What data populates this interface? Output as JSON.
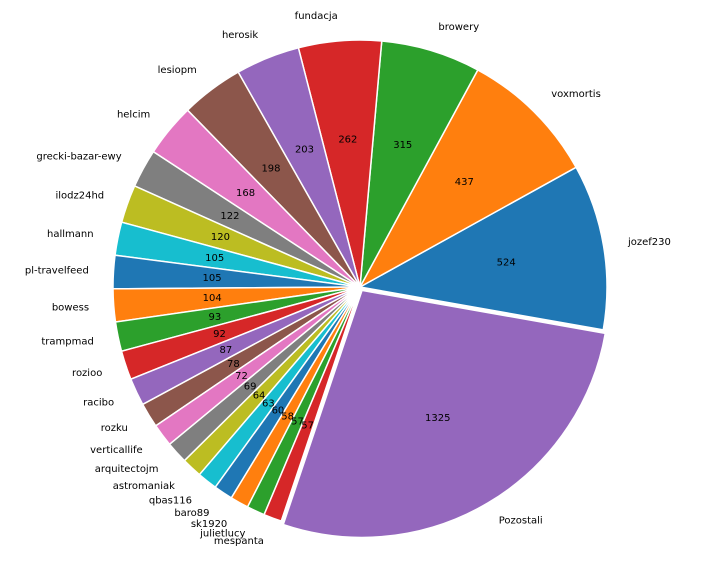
{
  "chart_data": {
    "type": "pie",
    "title": "",
    "start_angle_deg": -10,
    "direction": "counterclockwise",
    "slices": [
      {
        "label": "jozef230",
        "value": 524,
        "color": "#1f77b4"
      },
      {
        "label": "voxmortis",
        "value": 437,
        "color": "#ff7f0e"
      },
      {
        "label": "browery",
        "value": 315,
        "color": "#2ca02c"
      },
      {
        "label": "fundacja",
        "value": 262,
        "color": "#d62728"
      },
      {
        "label": "herosik",
        "value": 203,
        "color": "#9467bd"
      },
      {
        "label": "lesiopm",
        "value": 198,
        "color": "#8c564b"
      },
      {
        "label": "helcim",
        "value": 168,
        "color": "#e377c2"
      },
      {
        "label": "grecki-bazar-ewy",
        "value": 122,
        "color": "#7f7f7f"
      },
      {
        "label": "ilodz24hd",
        "value": 120,
        "color": "#bcbd22"
      },
      {
        "label": "hallmann",
        "value": 105,
        "color": "#17becf"
      },
      {
        "label": "pl-travelfeed",
        "value": 105,
        "color": "#1f77b4"
      },
      {
        "label": "bowess",
        "value": 104,
        "color": "#ff7f0e"
      },
      {
        "label": "trampmad",
        "value": 93,
        "color": "#2ca02c"
      },
      {
        "label": "rozioo",
        "value": 92,
        "color": "#d62728"
      },
      {
        "label": "racibo",
        "value": 87,
        "color": "#9467bd"
      },
      {
        "label": "rozku",
        "value": 78,
        "color": "#8c564b"
      },
      {
        "label": "verticallife",
        "value": 72,
        "color": "#e377c2"
      },
      {
        "label": "arquitectojm",
        "value": 69,
        "color": "#7f7f7f"
      },
      {
        "label": "astromaniak",
        "value": 64,
        "color": "#bcbd22"
      },
      {
        "label": "qbas116",
        "value": 63,
        "color": "#17becf"
      },
      {
        "label": "baro89",
        "value": 60,
        "color": "#1f77b4"
      },
      {
        "label": "sk1920",
        "value": 58,
        "color": "#ff7f0e"
      },
      {
        "label": "julietlucy",
        "value": 57,
        "color": "#2ca02c"
      },
      {
        "label": "mespanta",
        "value": 57,
        "color": "#d62728"
      },
      {
        "label": "Pozostali",
        "value": 1325,
        "color": "#9467bd"
      }
    ]
  }
}
